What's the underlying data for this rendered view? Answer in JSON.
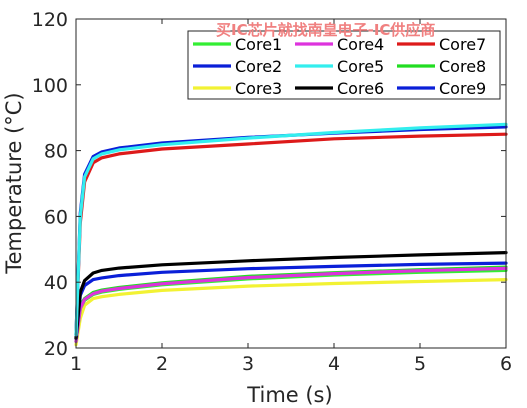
{
  "watermark": {
    "text": "买IC芯片就找南皇电子-IC供应商",
    "color": "#f08080"
  },
  "chart_data": {
    "type": "line",
    "xlabel": "Time (s)",
    "ylabel": "Temperature (°C)",
    "xlim": [
      1,
      6
    ],
    "ylim": [
      20,
      120
    ],
    "xticks": [
      1,
      2,
      3,
      4,
      5,
      6
    ],
    "yticks": [
      20,
      40,
      60,
      80,
      100,
      120
    ],
    "grid": false,
    "legend_position": "top-right",
    "legend_columns": 3,
    "x": [
      1.0,
      1.05,
      1.1,
      1.2,
      1.3,
      1.5,
      2.0,
      3.0,
      4.0,
      5.0,
      6.0
    ],
    "series": [
      {
        "name": "Core1",
        "color": "#33ee33",
        "values": [
          22,
          32,
          34.5,
          36.3,
          37.0,
          37.8,
          39.2,
          41.0,
          42.2,
          43.0,
          43.6
        ]
      },
      {
        "name": "Core2",
        "color": "#0a1fd8",
        "values": [
          23,
          36,
          39.0,
          40.8,
          41.3,
          42.0,
          43.0,
          44.1,
          44.8,
          45.4,
          45.8
        ]
      },
      {
        "name": "Core3",
        "color": "#f2f233",
        "values": [
          21,
          29,
          33.0,
          35.0,
          35.6,
          36.3,
          37.5,
          38.8,
          39.6,
          40.2,
          40.8
        ]
      },
      {
        "name": "Core4",
        "color": "#dd33dd",
        "values": [
          22,
          32,
          34.8,
          36.5,
          37.3,
          38.1,
          39.5,
          41.4,
          42.6,
          43.5,
          44.2
        ]
      },
      {
        "name": "Core5",
        "color": "#33eeee",
        "values": [
          24,
          60,
          72.0,
          77.5,
          79.0,
          80.2,
          81.8,
          83.8,
          85.5,
          86.9,
          88.0
        ]
      },
      {
        "name": "Core6",
        "color": "#000000",
        "values": [
          23,
          37,
          40.5,
          42.8,
          43.6,
          44.3,
          45.3,
          46.5,
          47.5,
          48.3,
          49.0
        ]
      },
      {
        "name": "Core7",
        "color": "#dd1a1a",
        "values": [
          24,
          58,
          70.5,
          76.3,
          77.8,
          79.0,
          80.5,
          82.0,
          83.6,
          84.4,
          85.0
        ]
      },
      {
        "name": "Core8",
        "color": "#22dd22",
        "values": [
          22,
          33,
          35.0,
          36.9,
          37.6,
          38.4,
          39.8,
          41.8,
          42.9,
          43.8,
          44.6
        ]
      },
      {
        "name": "Core9",
        "color": "#0a1fd8",
        "values": [
          24,
          61,
          72.8,
          78.2,
          79.6,
          80.8,
          82.3,
          84.0,
          85.3,
          86.4,
          87.2
        ]
      }
    ],
    "draw_order": [
      "Core3",
      "Core1",
      "Core8",
      "Core4",
      "Core2",
      "Core6",
      "Core7",
      "Core9",
      "Core5"
    ]
  }
}
